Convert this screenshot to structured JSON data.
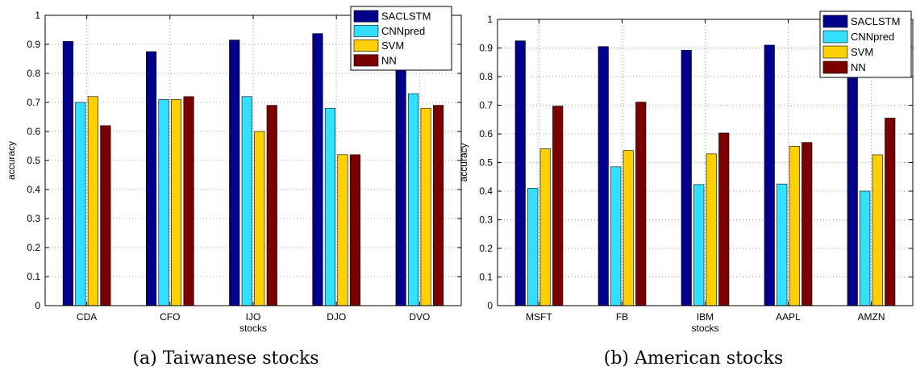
{
  "series_colors": [
    "#00008b",
    "#33e0ff",
    "#ffd000",
    "#7a0000"
  ],
  "chart_data": [
    {
      "type": "bar",
      "caption": "(a) Taiwanese stocks",
      "xlabel": "stocks",
      "ylabel": "accuracy",
      "ylim": [
        0,
        1
      ],
      "yticks": [
        "0",
        "0.1",
        "0.2",
        "0.3",
        "0.4",
        "0.5",
        "0.6",
        "0.7",
        "0.8",
        "0.9",
        "1"
      ],
      "grid": true,
      "legend_position": "top-right",
      "categories": [
        "CDA",
        "CFO",
        "IJO",
        "DJO",
        "DVO"
      ],
      "series": [
        {
          "name": "SACLSTM",
          "values": [
            0.91,
            0.875,
            0.915,
            0.937,
            0.95
          ]
        },
        {
          "name": "CNNpred",
          "values": [
            0.7,
            0.71,
            0.72,
            0.68,
            0.73
          ]
        },
        {
          "name": "SVM",
          "values": [
            0.72,
            0.71,
            0.6,
            0.52,
            0.68
          ]
        },
        {
          "name": "NN",
          "values": [
            0.62,
            0.72,
            0.69,
            0.52,
            0.69
          ]
        }
      ]
    },
    {
      "type": "bar",
      "caption": "(b) American stocks",
      "xlabel": "stocks",
      "ylabel": "accuracy",
      "ylim": [
        0,
        1
      ],
      "yticks": [
        "0",
        "0.1",
        "0.2",
        "0.3",
        "0.4",
        "0.5",
        "0.6",
        "0.7",
        "0.8",
        "0.9",
        "1"
      ],
      "grid": true,
      "legend_position": "top-right",
      "categories": [
        "MSFT",
        "FB",
        "IBM",
        "AAPL",
        "AMZN"
      ],
      "series": [
        {
          "name": "SACLSTM",
          "values": [
            0.925,
            0.905,
            0.892,
            0.91,
            0.905
          ]
        },
        {
          "name": "CNNpred",
          "values": [
            0.41,
            0.485,
            0.423,
            0.425,
            0.4
          ]
        },
        {
          "name": "SVM",
          "values": [
            0.548,
            0.542,
            0.53,
            0.557,
            0.527
          ]
        },
        {
          "name": "NN",
          "values": [
            0.697,
            0.711,
            0.603,
            0.57,
            0.655
          ]
        }
      ]
    }
  ]
}
